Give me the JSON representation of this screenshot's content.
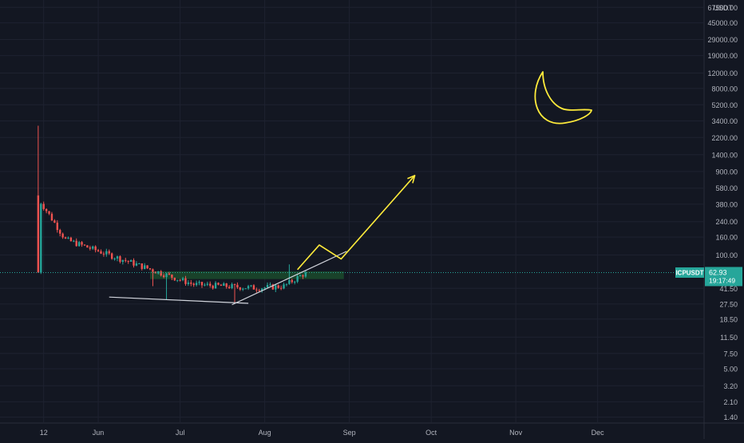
{
  "colors": {
    "background": "#131722",
    "grid": "#1e2230",
    "up_candle": "#26a69a",
    "down_candle": "#ef5350",
    "axis_text": "#b2b5be",
    "price_line": "#26a69a",
    "annotation_white": "#d1d4dc",
    "annotation_yellow": "#ffeb3b",
    "zone_fill": "#1b4a2c",
    "symbol_tag_bg": "#26a69a",
    "symbol_tag_text": "#ffffff"
  },
  "chart_data": {
    "type": "candlestick",
    "symbol": "ICPUSDT",
    "last_price": "62.93",
    "countdown": "19:17:49",
    "currency": "USDT",
    "y_scale": "log",
    "grid": true,
    "y_ticks": [
      "67500.00",
      "45000.00",
      "29000.00",
      "19000.00",
      "12000.00",
      "8000.00",
      "5200.00",
      "3400.00",
      "2200.00",
      "1400.00",
      "900.00",
      "580.00",
      "380.00",
      "240.00",
      "160.00",
      "100.00",
      "41.50",
      "27.50",
      "18.50",
      "11.50",
      "7.50",
      "5.00",
      "3.20",
      "2.10",
      "1.40"
    ],
    "x_ticks": [
      {
        "date": "2021-05-12",
        "label": "12"
      },
      {
        "date": "2021-06-01",
        "label": "Jun"
      },
      {
        "date": "2021-07-01",
        "label": "Jul"
      },
      {
        "date": "2021-08-01",
        "label": "Aug"
      },
      {
        "date": "2021-09-01",
        "label": "Sep"
      },
      {
        "date": "2021-10-01",
        "label": "Oct"
      },
      {
        "date": "2021-11-01",
        "label": "Nov"
      },
      {
        "date": "2021-12-01",
        "label": "Dec"
      }
    ],
    "x_range": [
      "2021-04-26",
      "2022-01-09"
    ],
    "y_range": [
      1.2,
      82000
    ],
    "key_points": [
      {
        "date": "2021-05-10",
        "high": 3000,
        "low": 480
      },
      {
        "date": "2021-05-11",
        "close": 400
      },
      {
        "date": "2021-05-20",
        "close": 150
      },
      {
        "date": "2021-06-21",
        "low": 44
      },
      {
        "date": "2021-06-26",
        "low": 31
      },
      {
        "date": "2021-07-06",
        "close": 46
      },
      {
        "date": "2021-07-21",
        "low": 28
      },
      {
        "date": "2021-07-29",
        "close": 42
      },
      {
        "date": "2021-08-08",
        "close": 44
      },
      {
        "date": "2021-08-10",
        "high": 78
      },
      {
        "date": "2021-08-16",
        "close": 62.93
      }
    ],
    "annotations": {
      "support_line": {
        "start": {
          "date": "2021-06-05",
          "price": 33
        },
        "end": {
          "date": "2021-07-26",
          "price": 28
        }
      },
      "rising_trendline": {
        "start": {
          "date": "2021-07-20",
          "price": 27
        },
        "end": {
          "date": "2021-08-31",
          "price": 110
        }
      },
      "resistance_zone": {
        "start": "2021-06-20",
        "end": "2021-08-30",
        "price_low": 53,
        "price_high": 65
      },
      "projection_arrow": [
        {
          "date": "2021-08-13",
          "price": 68
        },
        {
          "date": "2021-08-21",
          "price": 130
        },
        {
          "date": "2021-08-29",
          "price": 90
        },
        {
          "date": "2021-09-25",
          "price": 810
        }
      ]
    }
  }
}
